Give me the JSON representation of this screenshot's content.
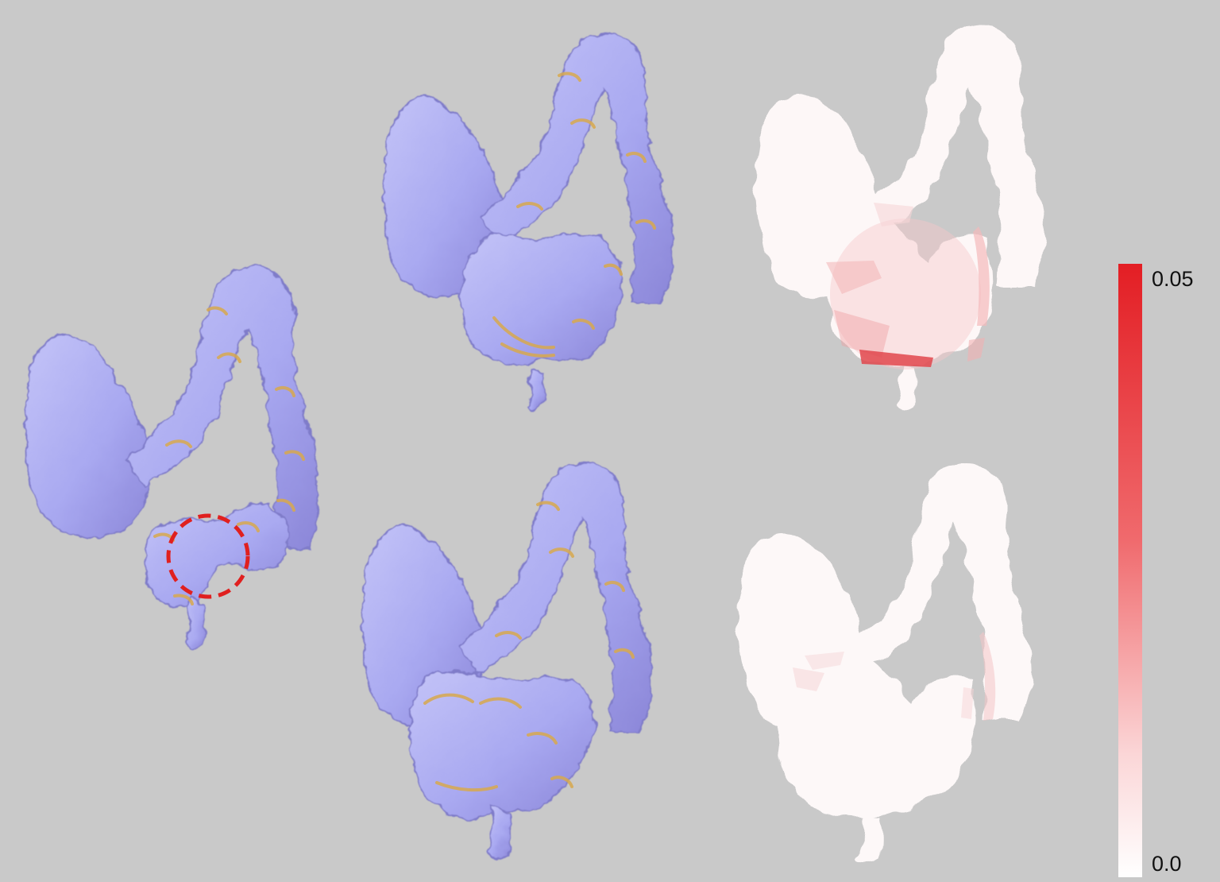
{
  "colors": {
    "background": "#c9c9c9",
    "surface_base": "#a9a9f1",
    "surface_highlight": "#d8a94e",
    "error_low": "#ffffff",
    "error_high": "#e31e24",
    "roi_circle": "#e0201f"
  },
  "colorbar": {
    "max_label": "0.05",
    "min_label": "0.0",
    "max_value": 0.05,
    "min_value": 0.0
  },
  "panels": [
    {
      "name": "original-colon-surface",
      "type": "3d-surface",
      "has_roi": true
    },
    {
      "name": "result-colon-surface-top",
      "type": "3d-surface"
    },
    {
      "name": "result-colon-surface-bottom",
      "type": "3d-surface"
    },
    {
      "name": "error-map-top",
      "type": "error-map"
    },
    {
      "name": "error-map-bottom",
      "type": "error-map"
    }
  ]
}
